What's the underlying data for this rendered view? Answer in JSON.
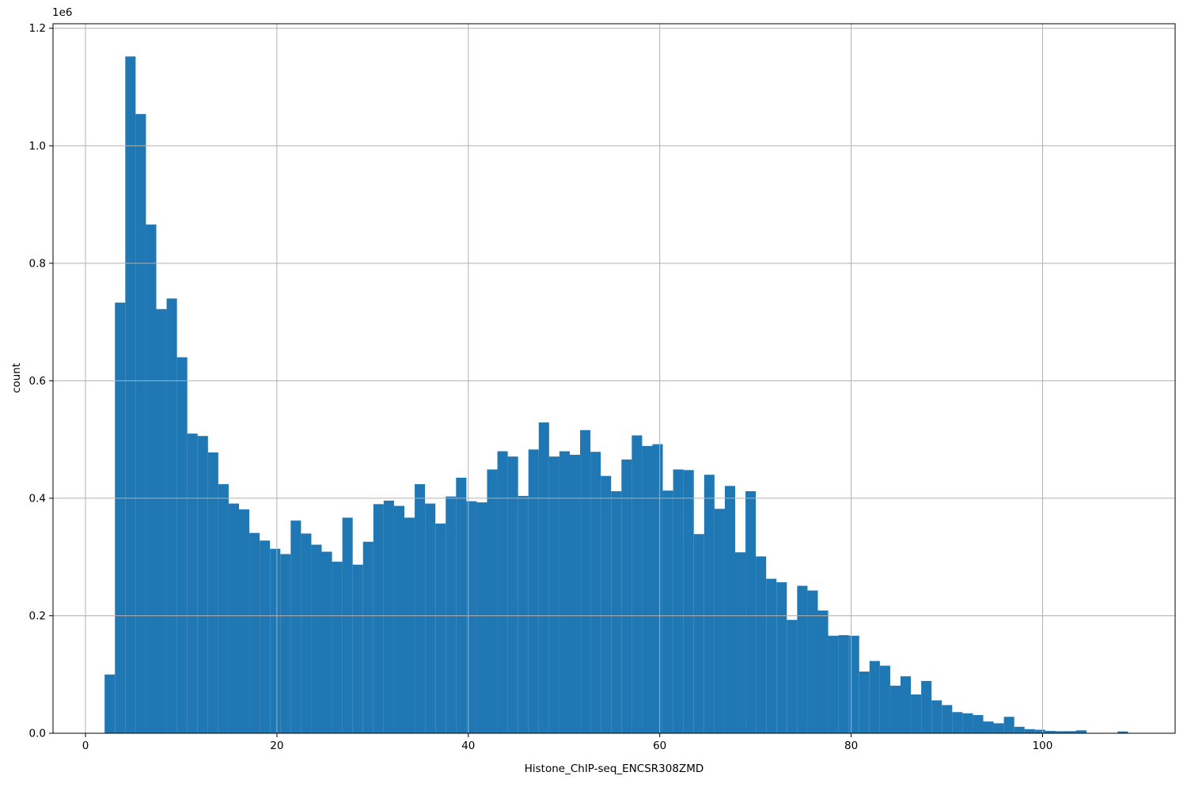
{
  "figure": {
    "background": "#ffffff",
    "xlabel": "Histone_ChIP-seq_ENCSR308ZMD",
    "ylabel": "count",
    "offset_label": "1e6"
  },
  "chart_data": {
    "type": "bar",
    "subtype": "histogram",
    "title": "",
    "xlabel": "Histone_ChIP-seq_ENCSR308ZMD",
    "ylabel": "count",
    "bar_color": "#1f77b4",
    "grid": true,
    "grid_color": "#b0b0b0",
    "spine_color": "#000000",
    "legend_position": "none",
    "bin_start": 2.0,
    "bin_width": 1.08,
    "xlim": [
      -3.39,
      113.85
    ],
    "ylim": [
      0,
      1207700
    ],
    "x_ticks": [
      0,
      20,
      40,
      60,
      80,
      100
    ],
    "x_tick_labels": [
      "0",
      "20",
      "40",
      "60",
      "80",
      "100"
    ],
    "y_ticks": [
      0,
      200000,
      400000,
      600000,
      800000,
      1000000,
      1200000
    ],
    "y_tick_labels": [
      "0.0",
      "0.2",
      "0.4",
      "0.6",
      "0.8",
      "1.0",
      "1.2"
    ],
    "values": [
      100000,
      733000,
      1152000,
      1054000,
      866000,
      722000,
      740000,
      640000,
      510000,
      506000,
      478000,
      424000,
      391000,
      381000,
      341000,
      328000,
      314000,
      305000,
      362000,
      340000,
      321000,
      309000,
      292000,
      367000,
      287000,
      326000,
      390000,
      396000,
      387000,
      367000,
      424000,
      391000,
      357000,
      403000,
      435000,
      395000,
      393000,
      449000,
      480000,
      471000,
      404000,
      483000,
      529000,
      471000,
      480000,
      474000,
      516000,
      479000,
      438000,
      412000,
      466000,
      507000,
      489000,
      492000,
      413000,
      449000,
      448000,
      339000,
      440000,
      382000,
      421000,
      308000,
      412000,
      301000,
      263000,
      257000,
      193000,
      251000,
      243000,
      209000,
      166000,
      167000,
      166000,
      105000,
      123000,
      115000,
      81000,
      97000,
      66000,
      89000,
      56000,
      48000,
      36000,
      34000,
      31000,
      20000,
      17000,
      28000,
      11000,
      7000,
      6000,
      4000,
      3500,
      3600,
      5000,
      700,
      500,
      600,
      3100
    ]
  }
}
